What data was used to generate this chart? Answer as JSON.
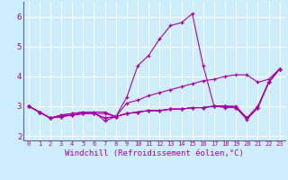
{
  "background_color": "#cceeff",
  "grid_color": "#ffffff",
  "line_color": "#aa00aa",
  "tick_color": "#aa00aa",
  "spine_color": "#666688",
  "ylabel_values": [
    2,
    3,
    4,
    5,
    6
  ],
  "xlabel_values": [
    0,
    1,
    2,
    3,
    4,
    5,
    6,
    7,
    8,
    9,
    10,
    11,
    12,
    13,
    14,
    15,
    16,
    17,
    18,
    19,
    20,
    21,
    22,
    23
  ],
  "xlabel_label": "Windchill (Refroidissement éolien,°C)",
  "ylim": [
    1.85,
    6.5
  ],
  "xlim": [
    -0.5,
    23.5
  ],
  "series": [
    {
      "x": [
        0,
        1,
        2,
        3,
        4,
        5,
        6,
        7,
        8,
        9,
        10,
        11,
        12,
        13,
        14,
        15,
        16,
        17,
        18,
        19,
        20,
        21,
        22,
        23
      ],
      "y": [
        3.0,
        2.8,
        2.6,
        2.7,
        2.75,
        2.8,
        2.8,
        2.5,
        2.65,
        3.3,
        4.35,
        4.7,
        5.25,
        5.7,
        5.8,
        6.1,
        4.35,
        3.0,
        2.95,
        2.95,
        2.6,
        3.0,
        3.8,
        4.25
      ]
    },
    {
      "x": [
        0,
        1,
        2,
        3,
        4,
        5,
        6,
        7,
        8,
        9,
        10,
        11,
        12,
        13,
        14,
        15,
        16,
        17,
        18,
        19,
        20,
        21,
        22,
        23
      ],
      "y": [
        3.0,
        2.8,
        2.6,
        2.7,
        2.75,
        2.8,
        2.8,
        2.8,
        2.65,
        3.1,
        3.2,
        3.35,
        3.45,
        3.55,
        3.65,
        3.75,
        3.85,
        3.9,
        4.0,
        4.05,
        4.05,
        3.8,
        3.9,
        4.25
      ]
    },
    {
      "x": [
        0,
        1,
        2,
        3,
        4,
        5,
        6,
        7,
        8,
        9,
        10,
        11,
        12,
        13,
        14,
        15,
        16,
        17,
        18,
        19,
        20,
        21,
        22,
        23
      ],
      "y": [
        3.0,
        2.8,
        2.6,
        2.65,
        2.7,
        2.75,
        2.75,
        2.75,
        2.65,
        2.75,
        2.8,
        2.85,
        2.85,
        2.9,
        2.9,
        2.95,
        2.95,
        3.0,
        3.0,
        3.0,
        2.6,
        2.95,
        3.8,
        4.25
      ]
    },
    {
      "x": [
        0,
        1,
        2,
        3,
        4,
        5,
        6,
        7,
        8,
        9,
        10,
        11,
        12,
        13,
        14,
        15,
        16,
        17,
        18,
        19,
        20,
        21,
        22,
        23
      ],
      "y": [
        3.0,
        2.8,
        2.6,
        2.65,
        2.7,
        2.75,
        2.75,
        2.6,
        2.65,
        2.75,
        2.8,
        2.85,
        2.85,
        2.9,
        2.9,
        2.95,
        2.95,
        3.0,
        3.0,
        2.95,
        2.6,
        2.95,
        3.8,
        4.25
      ]
    },
    {
      "x": [
        0,
        1,
        2,
        3,
        4,
        5,
        6,
        7,
        8,
        9,
        10,
        11,
        12,
        13,
        14,
        15,
        16,
        17,
        18,
        19,
        20,
        21,
        22,
        23
      ],
      "y": [
        3.0,
        2.8,
        2.6,
        2.65,
        2.7,
        2.75,
        2.75,
        2.6,
        2.65,
        2.75,
        2.8,
        2.85,
        2.85,
        2.9,
        2.9,
        2.95,
        2.95,
        3.0,
        3.0,
        2.95,
        2.55,
        2.95,
        3.8,
        4.25
      ]
    }
  ]
}
